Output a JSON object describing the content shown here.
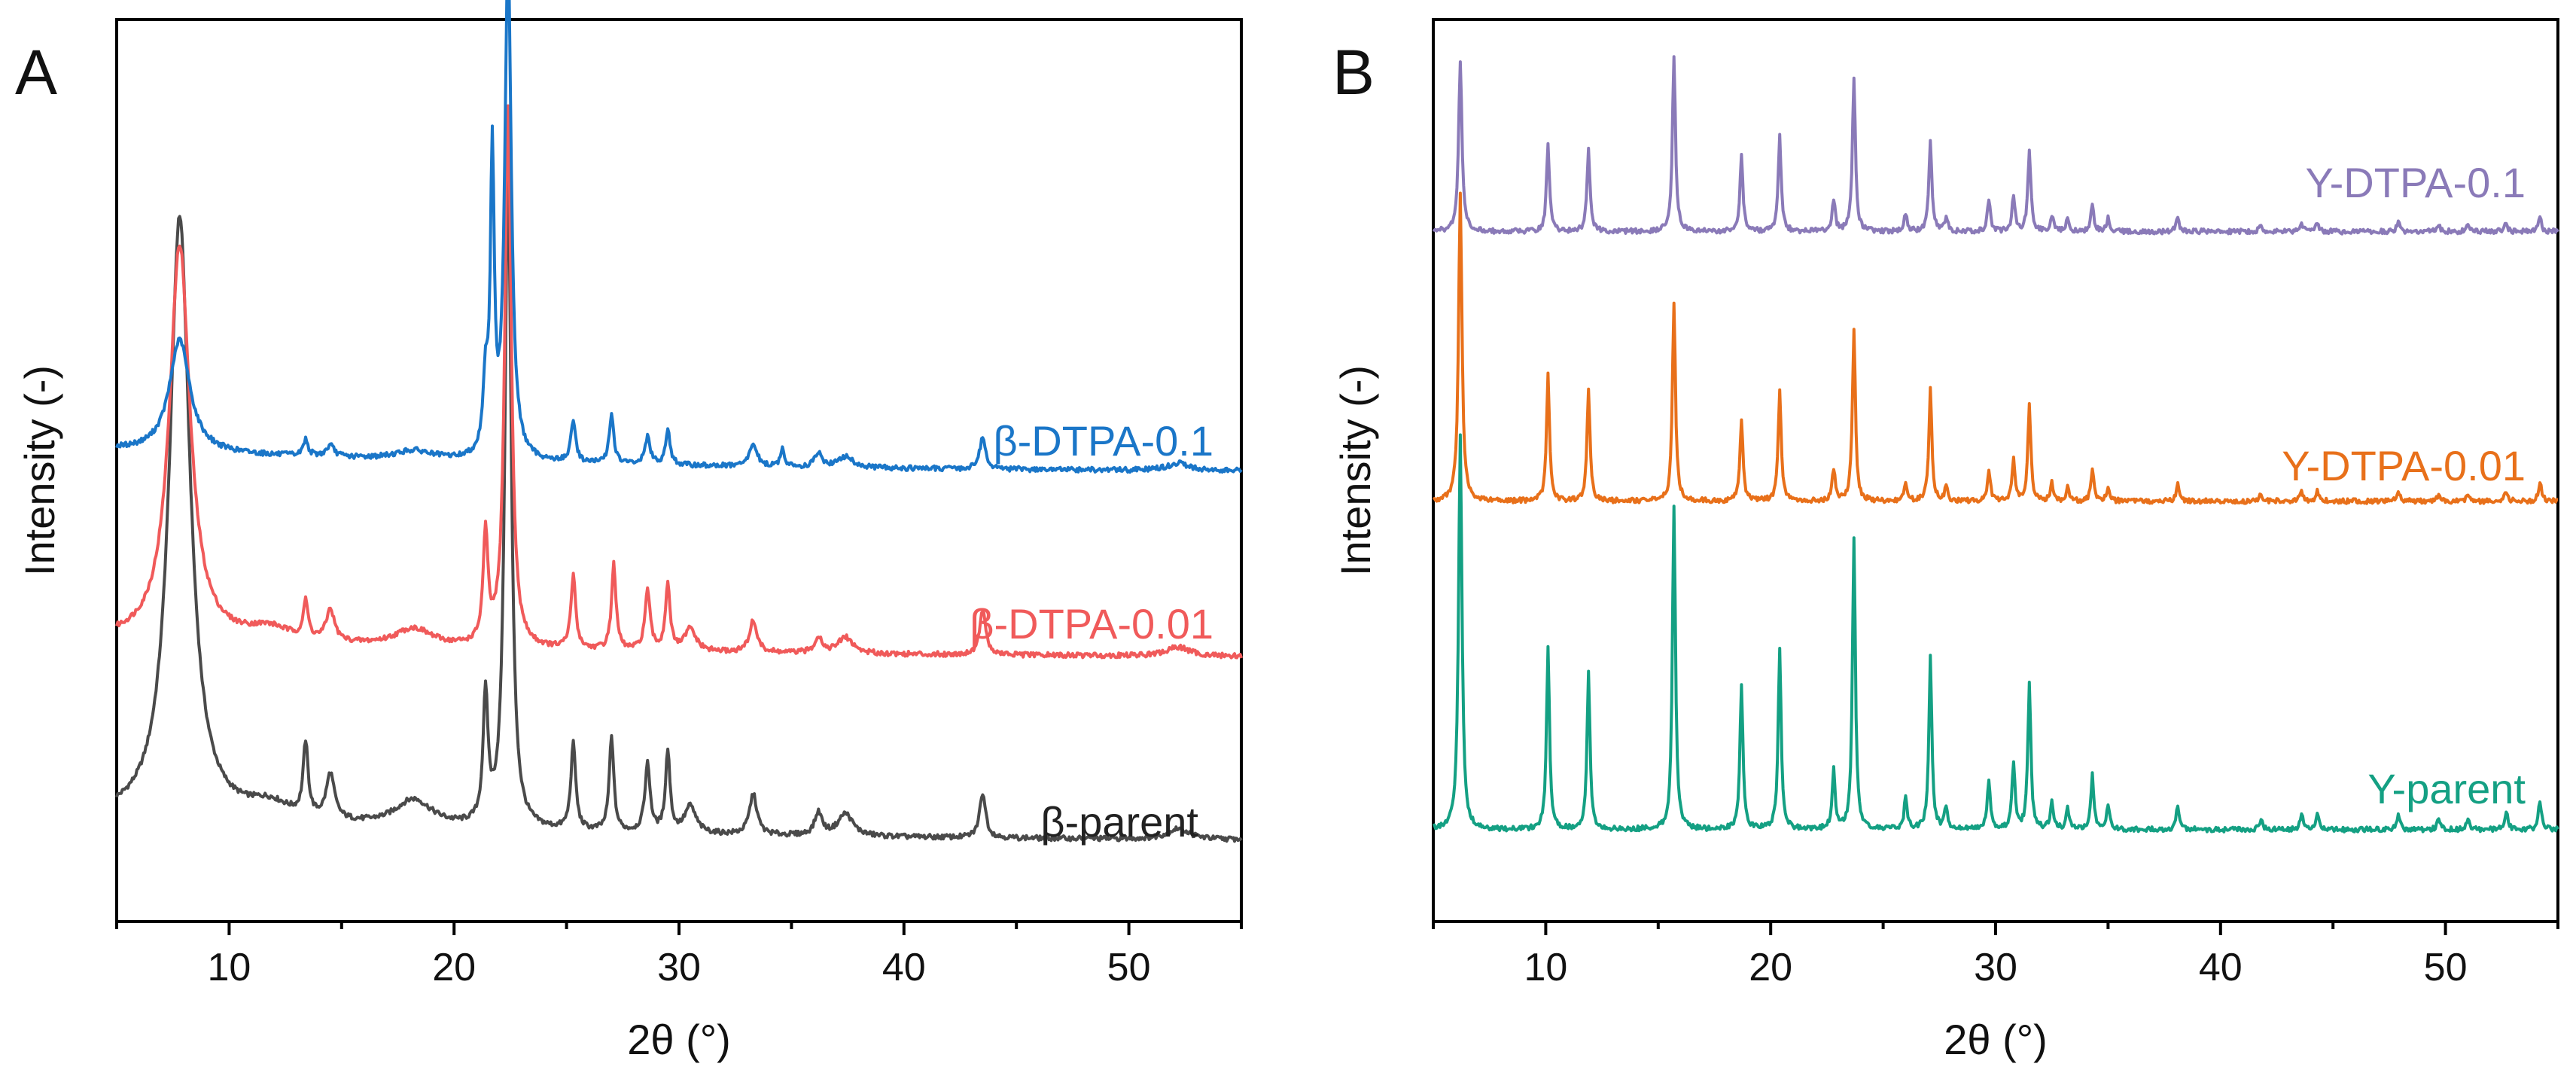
{
  "chart_data": [
    {
      "type": "line",
      "panel": "A",
      "xlabel": "2θ (°)",
      "ylabel": "Intensity (-)",
      "xlim": [
        5,
        55
      ],
      "ylim": [
        0,
        100
      ],
      "xticks": [
        10,
        20,
        30,
        40,
        50
      ],
      "series": [
        {
          "name": "β-parent",
          "color": "#4a4a4a",
          "offset": 8.8,
          "tail": 2.6,
          "peaks": [
            [
              7.8,
              67,
              0.55
            ],
            [
              11.8,
              1.8,
              1.2
            ],
            [
              13.4,
              8,
              0.13
            ],
            [
              14.5,
              5,
              0.22
            ],
            [
              18.2,
              3,
              1.0
            ],
            [
              21.4,
              14,
              0.13
            ],
            [
              22.4,
              73,
              0.17
            ],
            [
              25.3,
              9.5,
              0.13
            ],
            [
              27.0,
              10.5,
              0.12
            ],
            [
              28.6,
              7.5,
              0.14
            ],
            [
              29.5,
              9,
              0.12
            ],
            [
              30.5,
              3,
              0.3
            ],
            [
              33.3,
              4.5,
              0.2
            ],
            [
              36.2,
              2.5,
              0.2
            ],
            [
              37.4,
              2.5,
              0.4
            ],
            [
              43.5,
              5,
              0.16
            ],
            [
              52.2,
              1.2,
              0.6
            ]
          ]
        },
        {
          "name": "β-DTPA-0.01",
          "color": "#f05a5a",
          "offset": 29.2,
          "tail": 2.0,
          "peaks": [
            [
              7.8,
              44,
              0.55
            ],
            [
              11.8,
              1.5,
              1.2
            ],
            [
              13.4,
              4,
              0.13
            ],
            [
              14.5,
              3.5,
              0.22
            ],
            [
              18.2,
              2,
              1.0
            ],
            [
              21.4,
              12,
              0.13
            ],
            [
              22.4,
              60,
              0.17
            ],
            [
              25.3,
              8,
              0.13
            ],
            [
              27.1,
              9.5,
              0.12
            ],
            [
              28.6,
              6.5,
              0.14
            ],
            [
              29.5,
              7.5,
              0.12
            ],
            [
              30.5,
              2.5,
              0.3
            ],
            [
              33.3,
              3.5,
              0.2
            ],
            [
              36.2,
              1.8,
              0.2
            ],
            [
              37.4,
              1.8,
              0.4
            ],
            [
              43.5,
              5,
              0.16
            ],
            [
              52.2,
              1,
              0.6
            ]
          ]
        },
        {
          "name": "β-DTPA-0.1",
          "color": "#1a76c8",
          "offset": 49.7,
          "tail": 2.6,
          "peaks": [
            [
              7.8,
              12.5,
              0.55
            ],
            [
              13.4,
              1.8,
              0.13
            ],
            [
              14.5,
              1.2,
              0.22
            ],
            [
              18.2,
              1,
              1.0
            ],
            [
              21.4,
              8,
              0.13
            ],
            [
              21.7,
              33,
              0.1
            ],
            [
              22.4,
              56,
              0.17
            ],
            [
              25.3,
              4.5,
              0.13
            ],
            [
              27.0,
              5.5,
              0.12
            ],
            [
              28.6,
              3,
              0.14
            ],
            [
              29.5,
              4,
              0.12
            ],
            [
              33.3,
              2.5,
              0.2
            ],
            [
              34.6,
              2.2,
              0.1
            ],
            [
              36.2,
              1.5,
              0.2
            ],
            [
              37.4,
              1.2,
              0.4
            ],
            [
              43.5,
              3.5,
              0.16
            ],
            [
              52.2,
              0.8,
              0.6
            ]
          ]
        }
      ]
    },
    {
      "type": "line",
      "panel": "B",
      "xlabel": "2θ (°)",
      "ylabel": "Intensity (-)",
      "xlim": [
        5,
        55
      ],
      "ylim": [
        0,
        100
      ],
      "xticks": [
        10,
        20,
        30,
        40,
        50
      ],
      "series": [
        {
          "name": "Y-parent",
          "color": "#14a083",
          "offset": 10.2,
          "tail": 0,
          "peaks": [
            [
              6.2,
              44,
              0.09
            ],
            [
              10.1,
              20,
              0.08
            ],
            [
              11.9,
              17.5,
              0.08
            ],
            [
              15.7,
              36,
              0.08
            ],
            [
              18.7,
              16,
              0.08
            ],
            [
              20.4,
              20,
              0.08
            ],
            [
              22.8,
              6.5,
              0.08
            ],
            [
              23.7,
              32,
              0.08
            ],
            [
              26.0,
              3.5,
              0.08
            ],
            [
              27.1,
              19,
              0.08
            ],
            [
              27.8,
              2.5,
              0.08
            ],
            [
              29.7,
              5.5,
              0.08
            ],
            [
              30.8,
              7.5,
              0.08
            ],
            [
              31.5,
              16,
              0.08
            ],
            [
              32.5,
              3,
              0.08
            ],
            [
              33.2,
              2.5,
              0.08
            ],
            [
              34.3,
              6,
              0.08
            ],
            [
              35.0,
              2.5,
              0.08
            ],
            [
              38.1,
              2.7,
              0.08
            ],
            [
              41.8,
              1.2,
              0.08
            ],
            [
              43.6,
              1.8,
              0.08
            ],
            [
              44.3,
              1.8,
              0.08
            ],
            [
              47.9,
              1.7,
              0.08
            ],
            [
              49.7,
              1.3,
              0.08
            ],
            [
              51.0,
              1.2,
              0.08
            ],
            [
              52.7,
              2,
              0.08
            ],
            [
              54.2,
              3.3,
              0.08
            ]
          ]
        },
        {
          "name": "Y-DTPA-0.01",
          "color": "#e8701a",
          "offset": 46.6,
          "tail": 0,
          "peaks": [
            [
              6.2,
              34,
              0.09
            ],
            [
              10.1,
              14,
              0.08
            ],
            [
              11.9,
              12.5,
              0.08
            ],
            [
              15.7,
              22,
              0.08
            ],
            [
              18.7,
              9,
              0.08
            ],
            [
              20.4,
              12.5,
              0.08
            ],
            [
              22.8,
              3.5,
              0.08
            ],
            [
              23.7,
              19,
              0.08
            ],
            [
              26.0,
              2,
              0.08
            ],
            [
              27.1,
              12.5,
              0.08
            ],
            [
              27.8,
              1.5,
              0.08
            ],
            [
              29.7,
              3.5,
              0.08
            ],
            [
              30.8,
              4.5,
              0.08
            ],
            [
              31.5,
              10.5,
              0.08
            ],
            [
              32.5,
              2,
              0.08
            ],
            [
              33.2,
              1.5,
              0.08
            ],
            [
              34.3,
              3.5,
              0.08
            ],
            [
              35.0,
              1.5,
              0.08
            ],
            [
              38.1,
              1.8,
              0.08
            ],
            [
              41.8,
              0.8,
              0.08
            ],
            [
              43.6,
              1.2,
              0.08
            ],
            [
              44.3,
              1.2,
              0.08
            ],
            [
              47.9,
              1.2,
              0.08
            ],
            [
              49.7,
              0.8,
              0.08
            ],
            [
              51.0,
              0.7,
              0.08
            ],
            [
              52.7,
              1.2,
              0.08
            ],
            [
              54.2,
              2.2,
              0.08
            ]
          ]
        },
        {
          "name": "Y-DTPA-0.1",
          "color": "#8a7ab8",
          "offset": 76.5,
          "tail": 0,
          "peaks": [
            [
              6.2,
              19,
              0.09
            ],
            [
              10.1,
              9.5,
              0.08
            ],
            [
              11.9,
              9,
              0.08
            ],
            [
              15.7,
              19.5,
              0.08
            ],
            [
              18.7,
              8.5,
              0.08
            ],
            [
              20.4,
              10.5,
              0.08
            ],
            [
              22.8,
              3.5,
              0.08
            ],
            [
              23.7,
              17,
              0.08
            ],
            [
              26.0,
              2,
              0.08
            ],
            [
              27.1,
              10,
              0.08
            ],
            [
              27.8,
              1.5,
              0.08
            ],
            [
              29.7,
              3.5,
              0.08
            ],
            [
              30.8,
              4,
              0.08
            ],
            [
              31.5,
              9,
              0.08
            ],
            [
              32.5,
              1.8,
              0.08
            ],
            [
              33.2,
              1.3,
              0.08
            ],
            [
              34.3,
              2.8,
              0.08
            ],
            [
              35.0,
              1.5,
              0.08
            ],
            [
              38.1,
              1.5,
              0.08
            ],
            [
              41.8,
              0.7,
              0.08
            ],
            [
              43.6,
              1,
              0.08
            ],
            [
              44.3,
              1,
              0.08
            ],
            [
              47.9,
              1,
              0.08
            ],
            [
              49.7,
              0.7,
              0.08
            ],
            [
              51.0,
              0.6,
              0.08
            ],
            [
              52.7,
              0.9,
              0.08
            ],
            [
              54.2,
              1.5,
              0.08
            ]
          ]
        }
      ]
    }
  ]
}
